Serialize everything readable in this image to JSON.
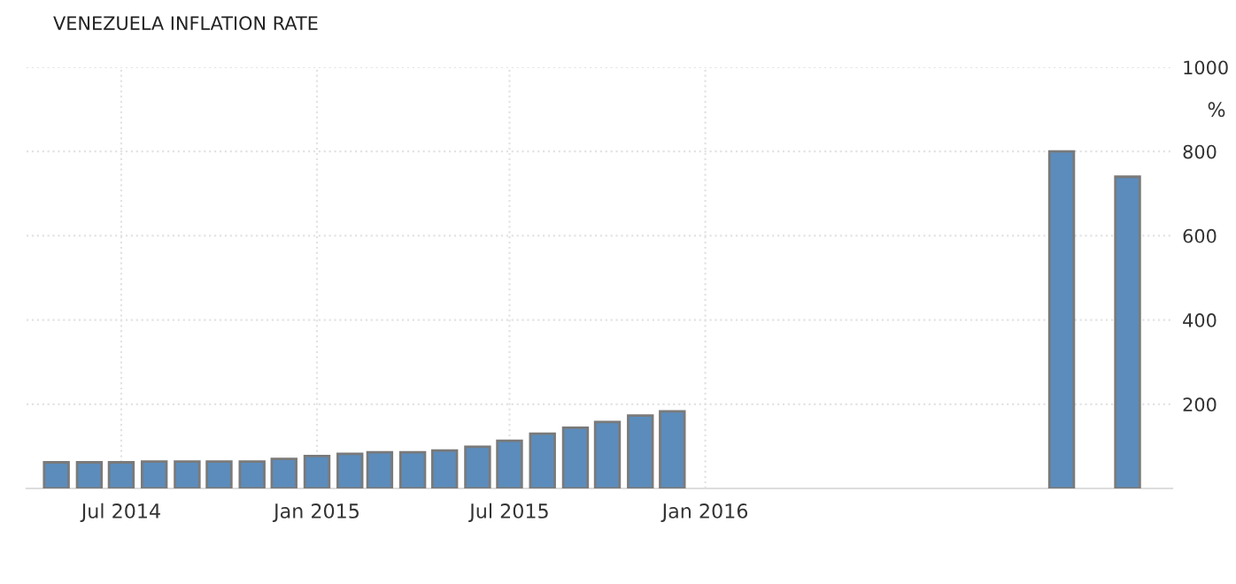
{
  "chart_data": {
    "type": "bar",
    "title": "VENEZUELA INFLATION RATE",
    "ylabel": "%",
    "x": [
      "2014-05",
      "2014-06",
      "2014-07",
      "2014-08",
      "2014-09",
      "2014-10",
      "2014-11",
      "2014-12",
      "2015-01",
      "2015-02",
      "2015-03",
      "2015-04",
      "2015-05",
      "2015-06",
      "2015-07",
      "2015-08",
      "2015-09",
      "2015-10",
      "2015-11",
      "2015-12",
      "2016-12",
      "2017-02"
    ],
    "values": [
      62,
      62,
      62,
      64,
      64,
      64,
      64,
      70,
      77,
      82,
      86,
      86,
      90,
      99,
      113,
      130,
      144,
      158,
      173,
      183,
      800,
      740
    ],
    "color": "#5b8cbc",
    "xlim": [
      "2014-04-03",
      "2017-03-15"
    ],
    "xticks": [
      {
        "value": "2014-07",
        "label": "Jul 2014"
      },
      {
        "value": "2015-01",
        "label": "Jan 2015"
      },
      {
        "value": "2015-07",
        "label": "Jul 2015"
      },
      {
        "value": "2016-01",
        "label": "Jan 2016"
      }
    ],
    "ylim": [
      0,
      1000
    ],
    "yticks": [
      200,
      400,
      600,
      800,
      1000
    ],
    "grid": true
  }
}
